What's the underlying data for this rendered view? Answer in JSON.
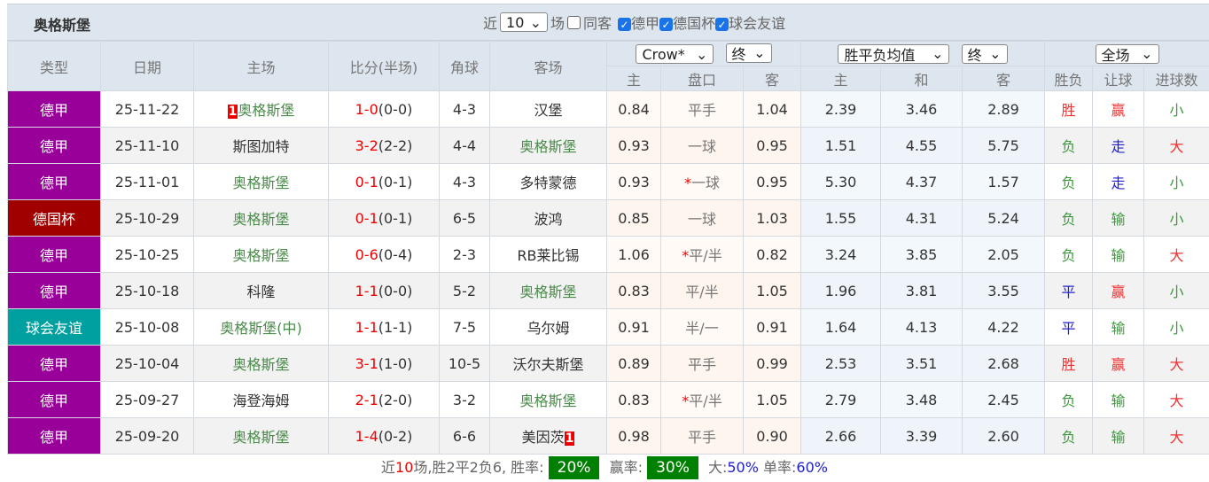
{
  "header": {
    "team": "奥格斯堡",
    "recent_label": "近",
    "recent_value": "10",
    "games_label": "场",
    "same_label": "同客",
    "filters": [
      {
        "label": "德甲",
        "checked": true
      },
      {
        "label": "德国杯",
        "checked": true
      },
      {
        "label": "球会友谊",
        "checked": true
      }
    ]
  },
  "columns": {
    "type": "类型",
    "date": "日期",
    "home": "主场",
    "score": "比分(半场)",
    "corner": "角球",
    "away": "客场",
    "company": "Crow*",
    "company_stage": "终",
    "odds_type": "胜平负均值",
    "odds_stage": "终",
    "period": "全场",
    "ah_home": "主",
    "ah_line": "盘口",
    "ah_away": "客",
    "eu_home": "主",
    "eu_draw": "和",
    "eu_away": "客",
    "result": "胜负",
    "handicap": "让球",
    "goals": "进球数"
  },
  "league_colors": {
    "德甲": "#990099",
    "德国杯": "#a00000",
    "球会友谊": "#00a0a0"
  },
  "rows": [
    {
      "league": "德甲",
      "date": "25-11-22",
      "home_rank": "1",
      "home": "奥格斯堡",
      "home_is_team": true,
      "ft": "1-0",
      "ht": "(0-0)",
      "corner": "4-3",
      "away": "汉堡",
      "away_is_team": false,
      "away_rank": "",
      "ah_h": "0.84",
      "ah_star": "",
      "ah_line": "平手",
      "ah_a": "1.04",
      "eu_h": "2.39",
      "eu_d": "3.46",
      "eu_a": "2.89",
      "res": "胜",
      "hc": "赢",
      "ou": "小"
    },
    {
      "league": "德甲",
      "date": "25-11-10",
      "home_rank": "",
      "home": "斯图加特",
      "home_is_team": false,
      "ft": "3-2",
      "ht": "(2-2)",
      "corner": "4-4",
      "away": "奥格斯堡",
      "away_is_team": true,
      "away_rank": "",
      "ah_h": "0.93",
      "ah_star": "",
      "ah_line": "一球",
      "ah_a": "0.95",
      "eu_h": "1.51",
      "eu_d": "4.55",
      "eu_a": "5.75",
      "res": "负",
      "hc": "走",
      "ou": "大"
    },
    {
      "league": "德甲",
      "date": "25-11-01",
      "home_rank": "",
      "home": "奥格斯堡",
      "home_is_team": true,
      "ft": "0-1",
      "ht": "(0-1)",
      "corner": "4-3",
      "away": "多特蒙德",
      "away_is_team": false,
      "away_rank": "",
      "ah_h": "0.93",
      "ah_star": "*",
      "ah_line": "一球",
      "ah_a": "0.95",
      "eu_h": "5.30",
      "eu_d": "4.37",
      "eu_a": "1.57",
      "res": "负",
      "hc": "走",
      "ou": "小"
    },
    {
      "league": "德国杯",
      "date": "25-10-29",
      "home_rank": "",
      "home": "奥格斯堡",
      "home_is_team": true,
      "ft": "0-1",
      "ht": "(0-1)",
      "corner": "6-5",
      "away": "波鸿",
      "away_is_team": false,
      "away_rank": "",
      "ah_h": "0.85",
      "ah_star": "",
      "ah_line": "一球",
      "ah_a": "1.03",
      "eu_h": "1.55",
      "eu_d": "4.31",
      "eu_a": "5.24",
      "res": "负",
      "hc": "输",
      "ou": "小"
    },
    {
      "league": "德甲",
      "date": "25-10-25",
      "home_rank": "",
      "home": "奥格斯堡",
      "home_is_team": true,
      "ft": "0-6",
      "ht": "(0-4)",
      "corner": "2-3",
      "away": "RB莱比锡",
      "away_is_team": false,
      "away_rank": "",
      "ah_h": "1.06",
      "ah_star": "*",
      "ah_line": "平/半",
      "ah_a": "0.82",
      "eu_h": "3.24",
      "eu_d": "3.85",
      "eu_a": "2.05",
      "res": "负",
      "hc": "输",
      "ou": "大"
    },
    {
      "league": "德甲",
      "date": "25-10-18",
      "home_rank": "",
      "home": "科隆",
      "home_is_team": false,
      "ft": "1-1",
      "ht": "(0-0)",
      "corner": "5-2",
      "away": "奥格斯堡",
      "away_is_team": true,
      "away_rank": "",
      "ah_h": "0.83",
      "ah_star": "",
      "ah_line": "平/半",
      "ah_a": "1.05",
      "eu_h": "1.96",
      "eu_d": "3.81",
      "eu_a": "3.55",
      "res": "平",
      "hc": "赢",
      "ou": "小"
    },
    {
      "league": "球会友谊",
      "date": "25-10-08",
      "home_rank": "",
      "home": "奥格斯堡(中)",
      "home_is_team": true,
      "ft": "1-1",
      "ht": "(1-1)",
      "corner": "7-5",
      "away": "乌尔姆",
      "away_is_team": false,
      "away_rank": "",
      "ah_h": "0.91",
      "ah_star": "",
      "ah_line": "半/一",
      "ah_a": "0.91",
      "eu_h": "1.64",
      "eu_d": "4.13",
      "eu_a": "4.22",
      "res": "平",
      "hc": "输",
      "ou": "小"
    },
    {
      "league": "德甲",
      "date": "25-10-04",
      "home_rank": "",
      "home": "奥格斯堡",
      "home_is_team": true,
      "ft": "3-1",
      "ht": "(1-0)",
      "corner": "10-5",
      "away": "沃尔夫斯堡",
      "away_is_team": false,
      "away_rank": "",
      "ah_h": "0.89",
      "ah_star": "",
      "ah_line": "平手",
      "ah_a": "0.99",
      "eu_h": "2.53",
      "eu_d": "3.51",
      "eu_a": "2.68",
      "res": "胜",
      "hc": "赢",
      "ou": "大"
    },
    {
      "league": "德甲",
      "date": "25-09-27",
      "home_rank": "",
      "home": "海登海姆",
      "home_is_team": false,
      "ft": "2-1",
      "ht": "(2-0)",
      "corner": "3-2",
      "away": "奥格斯堡",
      "away_is_team": true,
      "away_rank": "",
      "ah_h": "0.83",
      "ah_star": "*",
      "ah_line": "平/半",
      "ah_a": "1.05",
      "eu_h": "2.79",
      "eu_d": "3.48",
      "eu_a": "2.45",
      "res": "负",
      "hc": "输",
      "ou": "大"
    },
    {
      "league": "德甲",
      "date": "25-09-20",
      "home_rank": "",
      "home": "奥格斯堡",
      "home_is_team": true,
      "ft": "1-4",
      "ht": "(0-2)",
      "corner": "6-6",
      "away": "美因茨",
      "away_is_team": false,
      "away_rank": "1",
      "ah_h": "0.98",
      "ah_star": "",
      "ah_line": "平手",
      "ah_a": "0.90",
      "eu_h": "2.66",
      "eu_d": "3.39",
      "eu_a": "2.60",
      "res": "负",
      "hc": "输",
      "ou": "大"
    }
  ],
  "summary": {
    "p1": "近",
    "n": "10",
    "p2": "场,胜2平2负6, 胜率:",
    "win_rate": "20%",
    "p3": "赢率:",
    "cover_rate": "30%",
    "p4": "大:",
    "over_rate": "50%",
    "p5": "单率:",
    "odd_rate": "60%"
  }
}
